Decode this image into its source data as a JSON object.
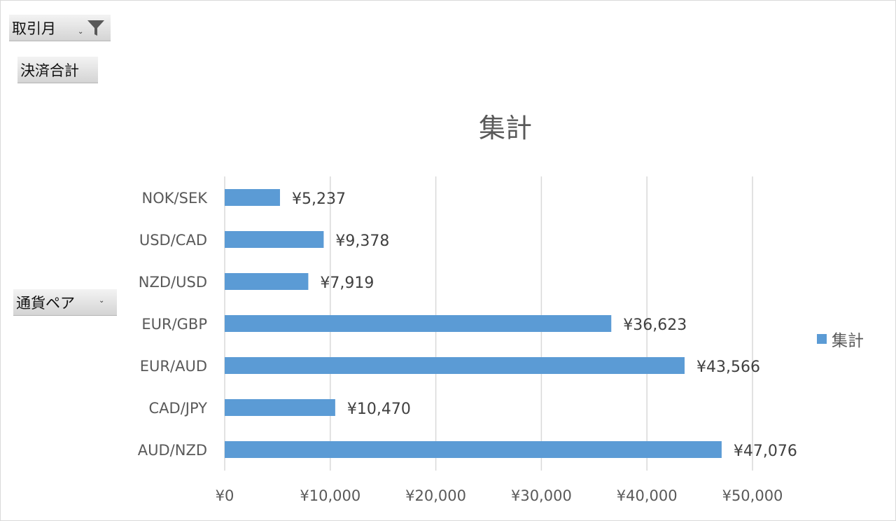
{
  "filters": {
    "month_label": "取引月",
    "value_field_label": "決済合計",
    "category_field_label": "通貨ペア"
  },
  "colors": {
    "bar": "#5b9bd5",
    "grid": "#d9d9d9",
    "text": "#595959",
    "label": "#404040"
  },
  "chart_data": {
    "type": "bar",
    "orientation": "horizontal",
    "title": "集計",
    "categories": [
      "NOK/SEK",
      "USD/CAD",
      "NZD/USD",
      "EUR/GBP",
      "EUR/AUD",
      "CAD/JPY",
      "AUD/NZD"
    ],
    "series": [
      {
        "name": "集計",
        "values": [
          5237,
          9378,
          7919,
          36623,
          43566,
          10470,
          47076
        ],
        "data_labels": [
          "¥5,237",
          "¥9,378",
          "¥7,919",
          "¥36,623",
          "¥43,566",
          "¥10,470",
          "¥47,076"
        ]
      }
    ],
    "xlim": [
      0,
      50000
    ],
    "x_ticks": [
      0,
      10000,
      20000,
      30000,
      40000,
      50000
    ],
    "x_tick_labels": [
      "¥0",
      "¥10,000",
      "¥20,000",
      "¥30,000",
      "¥40,000",
      "¥50,000"
    ],
    "grid": true,
    "legend": "right"
  }
}
